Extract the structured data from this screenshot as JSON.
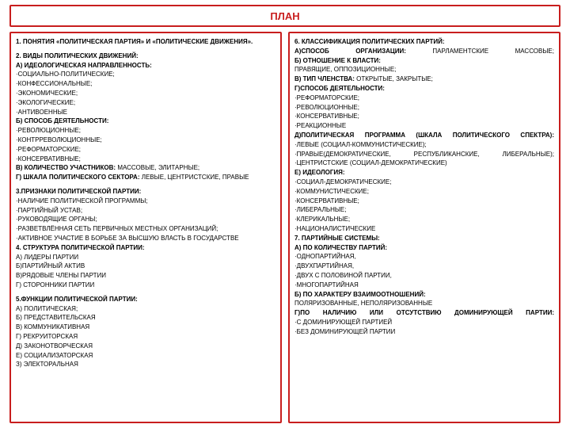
{
  "colors": {
    "accent": "#c81e1e",
    "text": "#000000",
    "background": "#ffffff"
  },
  "title": "ПЛАН",
  "left": {
    "s1": "1. ПОНЯТИЯ «ПОЛИТИЧЕСКАЯ ПАРТИЯ» И «ПОЛИТИЧЕСКИЕ ДВИЖЕНИЯ».",
    "s2": "2. ВИДЫ ПОЛИТИЧЕСКИХ ДВИЖЕНИЙ:",
    "s2a": "А) ИДЕОЛОГИЧЕСКАЯ НАПРАВЛЕННОСТЬ:",
    "s2a1": "·СОЦИАЛЬНО-ПОЛИТИЧЕСКИЕ;",
    "s2a2": "·КОНФЕССИОНАЛЬНЫЕ;",
    "s2a3": "·ЭКОНОМИЧЕСКИЕ;",
    "s2a4": "·ЭКОЛОГИЧЕСКИЕ;",
    "s2a5": "·АНТИВОЕННЫЕ",
    "s2b": "Б) СПОСОБ ДЕЯТЕЛЬНОСТИ:",
    "s2b1": "·РЕВОЛЮЦИОННЫЕ;",
    "s2b2": "·КОНТРРЕВОЛЮЦИОННЫЕ;",
    "s2b3": "·РЕФОРМАТОРСКИЕ;",
    "s2b4": "·КОНСЕРВАТИВНЫЕ;",
    "s2c_b": "В) КОЛИЧЕСТВО УЧАСТНИКОВ:",
    "s2c_t": " МАССОВЫЕ, ЭЛИТАРНЫЕ;",
    "s2d_b": "Г) ШКАЛА ПОЛИТИЧЕСКОГО СЕКТОРА:",
    "s2d_t": " ЛЕВЫЕ, ЦЕНТРИСТСКИЕ, ПРАВЫЕ",
    "s3": "3.ПРИЗНАКИ ПОЛИТИЧЕСКОЙ ПАРТИИ:",
    "s3a": "·НАЛИЧИЕ ПОЛИТИЧЕСКОЙ ПРОГРАММЫ;",
    "s3b": "·ПАРТИЙНЫЙ УСТАВ;",
    "s3c": "·РУКОВОДЯЩИЕ ОРГАНЫ;",
    "s3d": "·РАЗВЕТВЛЁННАЯ СЕТЬ ПЕРВИЧНЫХ МЕСТНЫХ ОРГАНИЗАЦИЙ;",
    "s3e": "·АКТИВНОЕ УЧАСТИЕ В БОРЬБЕ ЗА ВЫСШУЮ ВЛАСТЬ В ГОСУДАРСТВЕ",
    "s4": "4. СТРУКТУРА ПОЛИТИЧЕСКОЙ ПАРТИИ:",
    "s4a": "А) ЛИДЕРЫ ПАРТИИ",
    "s4b": "Б)ПАРТИЙНЫЙ АКТИВ",
    "s4c": "В)РЯДОВЫЕ ЧЛЕНЫ ПАРТИИ",
    "s4d": "Г) СТОРОННИКИ ПАРТИИ",
    "s5": "5.ФУНКЦИИ ПОЛИТИЧЕСКОЙ ПАРТИИ:",
    "s5a": "А) ПОЛИТИЧЕСКАЯ;",
    "s5b": "Б) ПРЕДСТАВИТЕЛЬСКАЯ",
    "s5c": "В) КОММУНИКАТИВНАЯ",
    "s5d": "Г) РЕКРУИТОРСКАЯ",
    "s5e": "Д) ЗАКОНОТВОРЧЕСКАЯ",
    "s5f": "Е) СОЦИАЛИЗАТОРСКАЯ",
    "s5g": "З) ЭЛЕКТОРАЛЬНАЯ"
  },
  "right": {
    "s6": "6. КЛАССИФИКАЦИЯ ПОЛИТИЧЕСКИХ ПАРТИЙ:",
    "s6a_b": "А)СПОСОБ ОРГАНИЗАЦИИ:",
    "s6a_t": "ПАРЛАМЕНТСКИЕ МАССОВЫЕ;",
    "s6b": "Б) ОТНОШЕНИЕ К ВЛАСТИ:",
    "s6b1": "ПРАВЯЩИЕ, ОППОЗИЦИОННЫЕ;",
    "s6c_b": "В) ТИП ЧЛЕНСТВА:",
    "s6c_t": " ОТКРЫТЫЕ, ЗАКРЫТЫЕ;",
    "s6d": "Г)СПОСОБ ДЕЯТЕЛЬНОСТИ:",
    "s6d1": "·РЕФОРМАТОРСКИЕ;",
    "s6d2": "·РЕВОЛЮЦИОННЫЕ;",
    "s6d3": "·КОНСЕРВАТИВНЫЕ;",
    "s6d4": "·РЕАКЦИОННЫЕ",
    "s6e": "Д)ПОЛИТИЧЕСКАЯ ПРОГРАММА (ШКАЛА ПОЛИТИЧЕСКОГО СПЕКТРА):",
    "s6e1": "·ЛЕВЫЕ (СОЦИАЛ-КОММУНИСТИЧЕСКИЕ);",
    "s6e2": "·ПРАВЫЕ(ДЕМОКРАТИЧЕСКИЕ, РЕСПУБЛИКАНСКИЕ, ЛИБЕРАЛЬНЫЕ);",
    "s6e3": "·ЦЕНТРИСТСКИЕ (СОЦИАЛ-ДЕМОКРАТИЧЕСКИЕ)",
    "s6f": "Е) ИДЕОЛОГИЯ:",
    "s6f1": "·СОЦИАЛ-ДЕМОКРАТИЧЕСКИЕ;",
    "s6f2": "·КОММУНИСТИЧЕСКИЕ;",
    "s6f3": "·КОНСЕРВАТИВНЫЕ;",
    "s6f4": "·ЛИБЕРАЛЬНЫЕ;",
    "s6f5": "·КЛЕРИКАЛЬНЫЕ;",
    "s6f6": "·НАЦИОНАЛИСТИЧЕСКИЕ",
    "s7": "7. ПАРТИЙНЫЕ СИСТЕМЫ:",
    "s7a": "А) ПО КОЛИЧЕСТВУ ПАРТИЙ:",
    "s7a1": "·ОДНОПАРТИЙНАЯ,",
    "s7a2": "·ДВУХПАРТИЙНАЯ,",
    "s7a3": "·ДВУХ С ПОЛОВИНОЙ ПАРТИИ,",
    "s7a4": "·МНОГОПАРТИЙНАЯ",
    "s7b": "Б) ПО ХАРАКТЕРУ ВЗАИМООТНОШЕНИЙ:",
    "s7b1": "ПОЛЯРИЗОВАННЫЕ, НЕПОЛЯРИЗОВАННЫЕ",
    "s7c": "Г)ПО НАЛИЧИЮ ИЛИ ОТСУТСТВИЮ ДОМИНИРУЮЩЕЙ ПАРТИИ:",
    "s7c1": "·С ДОМИНИРУЮЩЕЙ ПАРТИЕЙ",
    "s7c2": "·БЕЗ ДОМИНИРУЮЩЕЙ ПАРТИИ"
  }
}
